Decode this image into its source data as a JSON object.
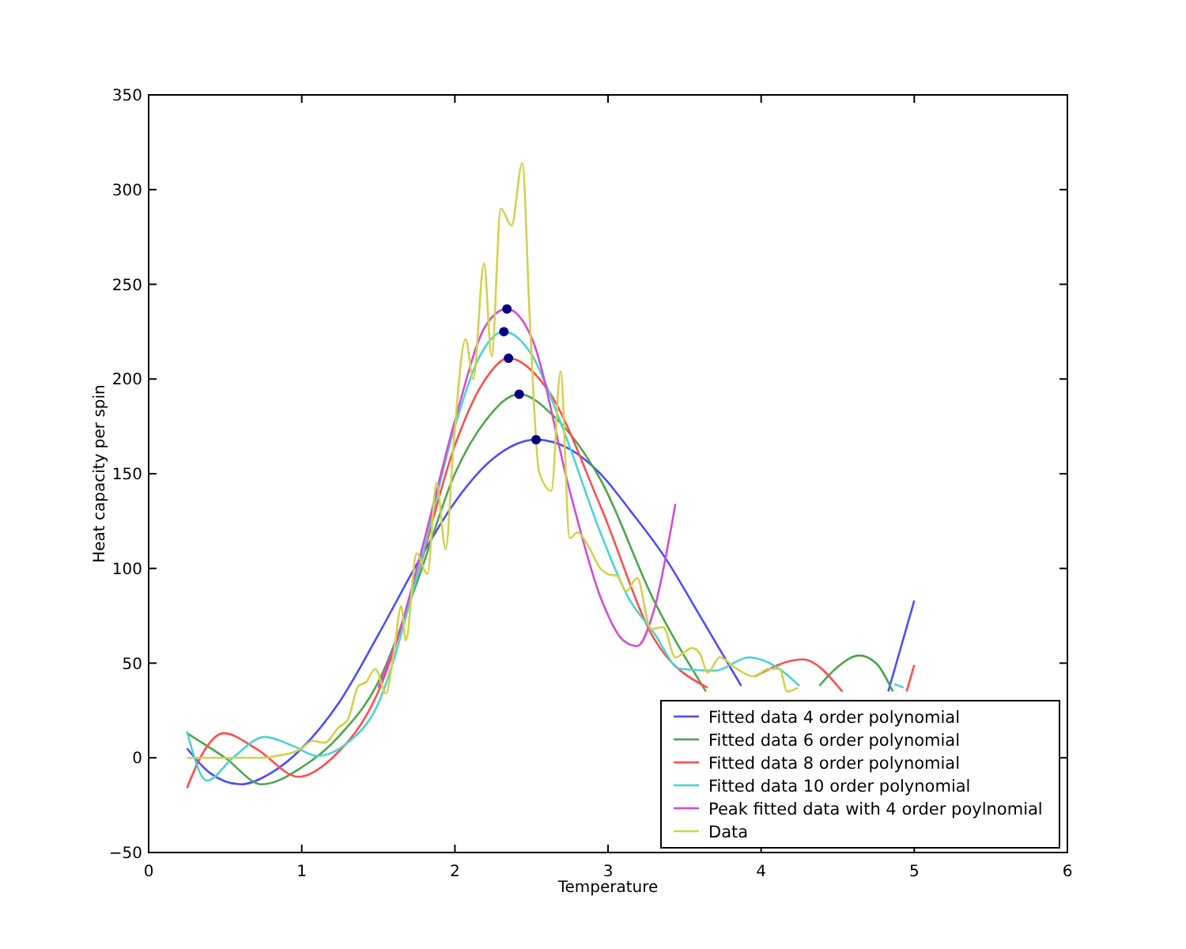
{
  "chart_data": {
    "type": "line",
    "xlabel": "Temperature",
    "ylabel": "Heat capacity per spin",
    "xlim": [
      0,
      6
    ],
    "xticks": [
      0,
      1,
      2,
      3,
      4,
      5,
      6
    ],
    "ylim": [
      -50,
      350
    ],
    "yticks": [
      {
        "value": -50,
        "label": "−50"
      },
      0,
      50,
      100,
      150,
      200,
      250,
      300,
      350
    ],
    "grid": false,
    "legend": "bottom right",
    "line_style": "solid",
    "series": [
      {
        "name": "Fitted data 4 order polynomial",
        "color": "#4d4dff",
        "x": [
          0.25,
          0.4,
          0.6,
          0.8,
          1.0,
          1.25,
          1.5,
          1.75,
          2.0,
          2.25,
          2.53,
          2.75,
          2.95,
          3.15,
          3.37,
          3.6,
          3.87,
          4.2,
          4.83,
          5.0
        ],
        "values": [
          5,
          -8,
          -14,
          -8,
          5,
          30,
          65,
          102,
          135,
          158,
          168,
          163,
          150,
          130,
          106,
          75,
          38,
          null,
          35,
          83
        ]
      },
      {
        "name": "Fitted data 6 order polynomial",
        "color": "#4da64d",
        "x": [
          0.25,
          0.5,
          0.74,
          1.0,
          1.25,
          1.5,
          1.75,
          2.0,
          2.2,
          2.42,
          2.65,
          2.95,
          3.3,
          3.64,
          4.0,
          4.38,
          4.5,
          4.64,
          4.75,
          4.86
        ],
        "values": [
          13,
          0,
          -14,
          -5,
          12,
          40,
          92,
          150,
          178,
          192,
          180,
          147,
          83,
          35,
          null,
          38,
          48,
          54,
          50,
          35
        ]
      },
      {
        "name": "Fitted data 8 order polynomial",
        "color": "#ff4d4d",
        "x": [
          0.25,
          0.35,
          0.49,
          0.7,
          0.98,
          1.2,
          1.5,
          1.75,
          2.0,
          2.2,
          2.35,
          2.6,
          2.95,
          3.3,
          3.65,
          3.85,
          3.96,
          4.27,
          4.53,
          4.75,
          4.95,
          5.0
        ],
        "values": [
          -16,
          2,
          13,
          5,
          -10,
          0,
          35,
          95,
          165,
          200,
          211,
          195,
          133,
          63,
          37,
          null,
          43,
          52,
          35,
          null,
          35,
          49
        ]
      },
      {
        "name": "Fitted data 10 order polynomial",
        "color": "#4dd2d2",
        "x": [
          0.25,
          0.38,
          0.55,
          0.76,
          0.95,
          1.1,
          1.3,
          1.49,
          1.75,
          2.0,
          2.15,
          2.32,
          2.5,
          2.7,
          2.95,
          3.13,
          3.3,
          3.47,
          3.7,
          3.92,
          4.1,
          4.25,
          4.6,
          4.87,
          4.93
        ],
        "values": [
          14,
          -12,
          0,
          11,
          6,
          1,
          8,
          27,
          95,
          175,
          210,
          225,
          213,
          175,
          119,
          85,
          66,
          47,
          46,
          53,
          48,
          38,
          null,
          39,
          37
        ]
      },
      {
        "name": "Peak fitted data with 4 order poylnomial",
        "color": "#d24dd2",
        "x": [
          1.5,
          1.65,
          1.8,
          2.0,
          2.2,
          2.34,
          2.5,
          2.75,
          2.95,
          3.1,
          3.19,
          3.3,
          3.44
        ],
        "values": [
          37,
          70,
          115,
          178,
          228,
          237,
          222,
          141,
          85,
          62,
          59,
          78,
          134
        ]
      },
      {
        "name": "Data",
        "color": "#d2d24d",
        "x": [
          0.25,
          0.5,
          0.75,
          0.83,
          0.95,
          1.0,
          1.07,
          1.15,
          1.24,
          1.3,
          1.37,
          1.42,
          1.48,
          1.55,
          1.6,
          1.65,
          1.68,
          1.75,
          1.82,
          1.88,
          1.94,
          1.99,
          2.07,
          2.12,
          2.19,
          2.24,
          2.3,
          2.37,
          2.44,
          2.49,
          2.55,
          2.63,
          2.69,
          2.75,
          2.8,
          2.87,
          2.95,
          3.0,
          3.06,
          3.12,
          3.19,
          3.28,
          3.36,
          3.44,
          3.55,
          3.6,
          3.65,
          3.73,
          3.84,
          3.95,
          4.05,
          4.12,
          4.17,
          4.24
        ],
        "values": [
          0,
          0,
          0,
          1,
          3,
          5,
          9,
          8,
          16,
          20,
          38,
          40,
          47,
          34,
          55,
          80,
          62,
          108,
          97,
          145,
          110,
          164,
          221,
          200,
          261,
          212,
          290,
          281,
          314,
          230,
          151,
          141,
          204,
          116,
          119,
          112,
          100,
          97,
          96,
          88,
          95,
          68,
          69,
          53,
          58,
          55,
          45,
          53,
          47,
          43,
          47,
          47,
          35,
          37
        ]
      },
      {
        "type": "scatter",
        "marker": "circle",
        "color": "#000080",
        "x": [
          2.53,
          2.42,
          2.35,
          2.32,
          2.34
        ],
        "values": [
          168,
          192,
          211,
          225,
          237
        ]
      }
    ]
  }
}
